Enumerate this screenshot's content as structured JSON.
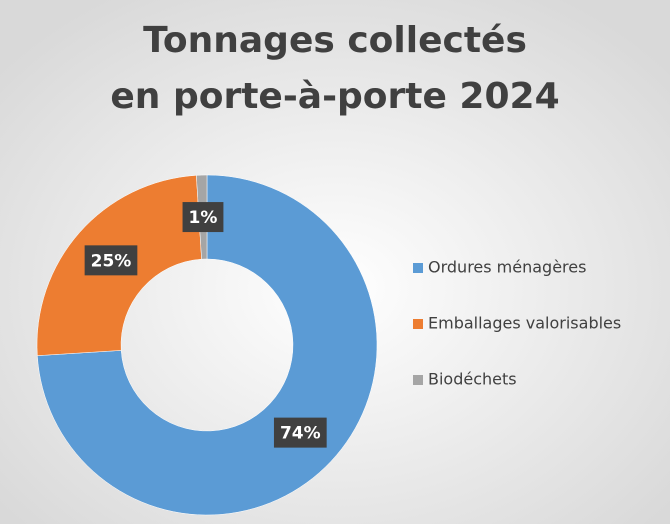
{
  "chart_data": {
    "type": "donut",
    "title": [
      "Tonnages collectés",
      "en porte-à-porte 2024"
    ],
    "categories": [
      "Ordures ménagères",
      "Emballages valorisables",
      "Biodéchets"
    ],
    "values": [
      74,
      25,
      1
    ],
    "value_labels": [
      "74%",
      "25%",
      "1%"
    ],
    "colors": [
      "#5b9bd5",
      "#ed7d31",
      "#a5a5a5"
    ],
    "legend": "right"
  }
}
